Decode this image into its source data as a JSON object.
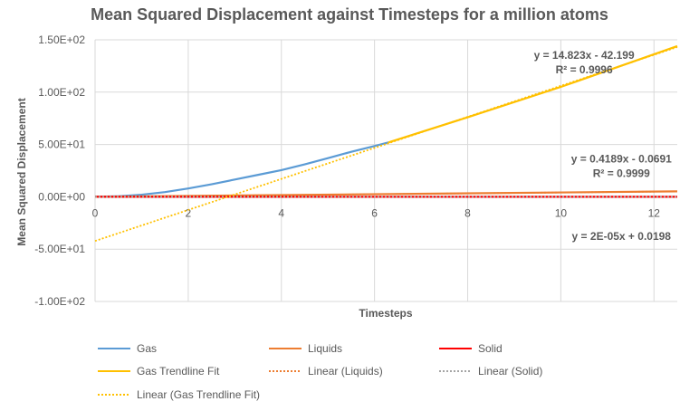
{
  "chart_data": {
    "type": "line",
    "title": "Mean Squared Displacement against Timesteps for a million atoms",
    "xlabel": "Timesteps",
    "ylabel": "Mean Squared Displacement",
    "xlim": [
      0,
      12.5
    ],
    "ylim": [
      -100,
      150
    ],
    "xticks": [
      0,
      2,
      4,
      6,
      8,
      10,
      12
    ],
    "yticks": [
      150,
      100,
      50,
      0,
      -50,
      -100
    ],
    "ytick_labels": [
      "1.50E+02",
      "1.00E+02",
      "5.00E+01",
      "0.00E+00",
      "-5.00E+01",
      "-1.00E+02"
    ],
    "grid": true,
    "legend_position": "bottom",
    "series": [
      {
        "name": "Gas",
        "color": "#5b9bd5",
        "style": "solid",
        "x": [
          0,
          0.5,
          1,
          1.5,
          2,
          2.5,
          3,
          3.5,
          4,
          4.5,
          5,
          5.5,
          6,
          6.3
        ],
        "y": [
          0,
          0.5,
          2,
          4.5,
          8,
          12,
          16.5,
          21,
          25.5,
          31,
          37,
          43,
          48.5,
          52
        ]
      },
      {
        "name": "Liquids",
        "color": "#ed7d31",
        "style": "solid",
        "x": [
          0,
          12.5
        ],
        "y": [
          0,
          5.2
        ]
      },
      {
        "name": "Solid",
        "color": "#ff0000",
        "style": "solid",
        "x": [
          0,
          12.5
        ],
        "y": [
          0,
          0
        ]
      },
      {
        "name": "Gas Trendline Fit",
        "color": "#ffc000",
        "style": "solid",
        "x": [
          6.3,
          8,
          10,
          12.5
        ],
        "y": [
          52,
          76,
          105,
          144
        ]
      },
      {
        "name": "Linear (Liquids)",
        "color": "#ed7d31",
        "style": "dotted",
        "x": [
          0,
          12.5
        ],
        "y": [
          -0.0691,
          5.167
        ]
      },
      {
        "name": "Linear (Solid)",
        "color": "#a5a5a5",
        "style": "dotted",
        "x": [
          0,
          12.5
        ],
        "y": [
          0.0198,
          0.0201
        ]
      },
      {
        "name": "Linear (Gas Trendline Fit)",
        "color": "#ffc000",
        "style": "dotted",
        "x": [
          0,
          12.5
        ],
        "y": [
          -42.199,
          143.09
        ]
      }
    ],
    "annotations": [
      {
        "text": "y = 14.823x - 42.199",
        "x": 10.5,
        "y": 132
      },
      {
        "text": "R² = 0.9996",
        "x": 10.5,
        "y": 118
      },
      {
        "text": "y = 0.4189x - 0.0691",
        "x": 11.3,
        "y": 33
      },
      {
        "text": "R² = 0.9999",
        "x": 11.3,
        "y": 19
      },
      {
        "text": "y = 2E-05x + 0.0198",
        "x": 11.3,
        "y": -41
      }
    ]
  }
}
